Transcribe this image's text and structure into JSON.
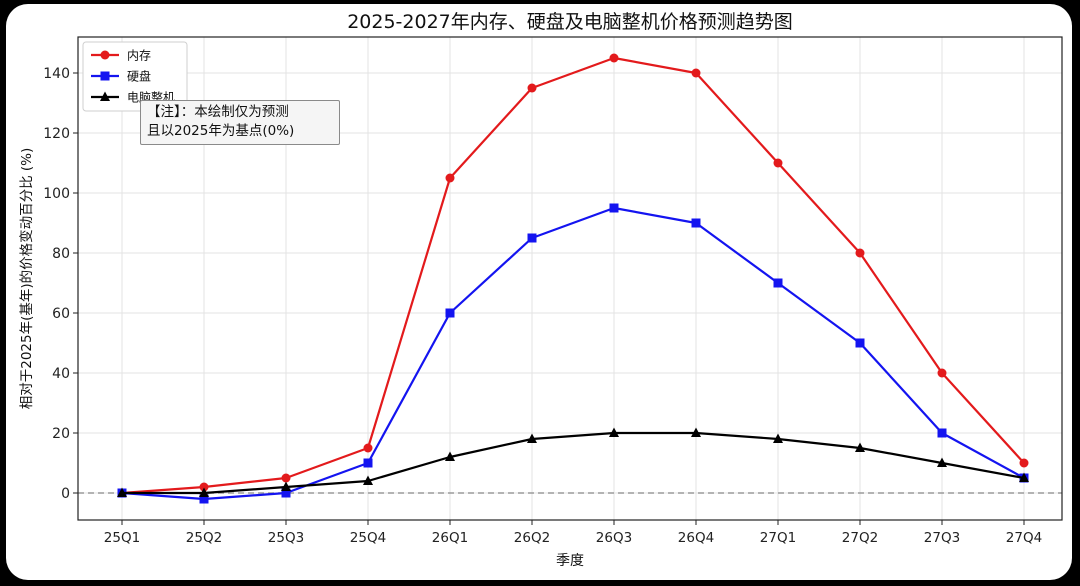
{
  "chart_data": {
    "type": "line",
    "title": "2025-2027年内存、硬盘及电脑整机价格预测趋势图",
    "xlabel": "季度",
    "ylabel": "相对于2025年(基年)的价格变动百分比 (%)",
    "categories": [
      "25Q1",
      "25Q2",
      "25Q3",
      "25Q4",
      "26Q1",
      "26Q2",
      "26Q3",
      "26Q4",
      "27Q1",
      "27Q2",
      "27Q3",
      "27Q4"
    ],
    "ylim": [
      -9,
      152
    ],
    "yticks": [
      0,
      20,
      40,
      60,
      80,
      100,
      120,
      140
    ],
    "grid": true,
    "baseline": 0,
    "legend_position": "top-left",
    "series": [
      {
        "name": "内存",
        "color": "#e31a1c",
        "marker": "circle",
        "values": [
          0,
          2,
          5,
          15,
          105,
          135,
          145,
          140,
          110,
          80,
          40,
          10
        ]
      },
      {
        "name": "硬盘",
        "color": "#1414f0",
        "marker": "square",
        "values": [
          0,
          -2,
          0,
          10,
          60,
          85,
          95,
          90,
          70,
          50,
          20,
          5
        ]
      },
      {
        "name": "电脑整机",
        "color": "#000000",
        "marker": "triangle",
        "values": [
          0,
          0,
          2,
          4,
          12,
          18,
          20,
          20,
          18,
          15,
          10,
          5
        ]
      }
    ]
  },
  "note": {
    "line1": "【注】：本绘制仅为预测",
    "line2": "且以2025年为基点(0%)"
  }
}
